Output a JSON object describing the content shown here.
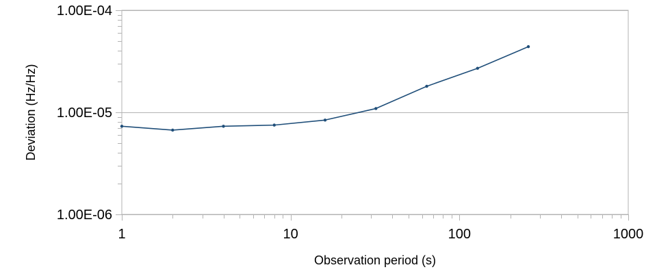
{
  "chart_data": {
    "type": "line",
    "title": "",
    "xlabel": "Observation period (s)",
    "ylabel": "Deviation (Hz/Hz)",
    "x_scale": "log",
    "y_scale": "log",
    "xlim": [
      1,
      1000
    ],
    "ylim": [
      1e-06,
      0.0001
    ],
    "x_ticks": [
      1,
      10,
      100,
      1000
    ],
    "x_tick_labels": [
      "1",
      "10",
      "100",
      "1000"
    ],
    "y_ticks": [
      1e-06,
      1e-05,
      0.0001
    ],
    "y_tick_labels": [
      "1.00E-06",
      "1.00E-05",
      "1.00E-04"
    ],
    "grid": "horizontal major",
    "legend": "none",
    "series": [
      {
        "color": "#1f4e79",
        "x": [
          1,
          2,
          4,
          8,
          16,
          32,
          64,
          128,
          256
        ],
        "y": [
          7.3e-06,
          6.7e-06,
          7.3e-06,
          7.5e-06,
          8.4e-06,
          1.09e-05,
          1.8e-05,
          2.7e-05,
          4.4e-05
        ]
      }
    ]
  }
}
